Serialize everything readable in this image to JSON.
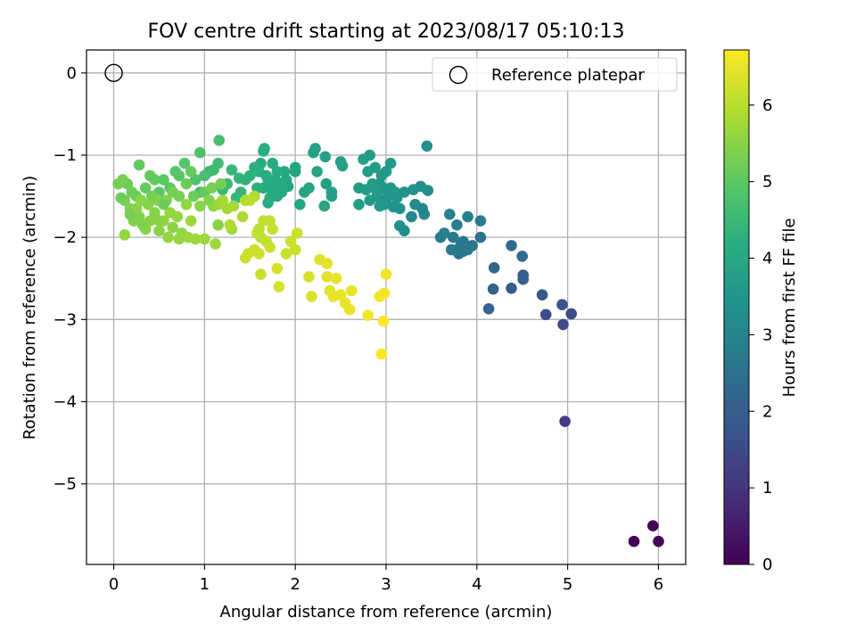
{
  "chart_data": {
    "type": "scatter",
    "title": "FOV centre drift starting at 2023/08/17 05:10:13",
    "xlabel": "Angular distance from reference (arcmin)",
    "ylabel": "Rotation from reference (arcmin)",
    "xlim": [
      -0.3,
      6.3
    ],
    "ylim": [
      -5.98,
      0.28
    ],
    "xticks": [
      "0",
      "1",
      "2",
      "3",
      "4",
      "5",
      "6"
    ],
    "yticks": [
      "0",
      "−1",
      "−2",
      "−3",
      "−4",
      "−5"
    ],
    "grid": true,
    "legend": {
      "position": "top-right",
      "label": "Reference platepar"
    },
    "reference_point": {
      "x": 0,
      "y": 0
    },
    "colorbar": {
      "label": "Hours from first FF file",
      "range": [
        0,
        6.72
      ],
      "ticks": [
        "0",
        "1",
        "2",
        "3",
        "4",
        "5",
        "6"
      ],
      "colormap": "viridis"
    },
    "points": [
      [
        5.73,
        -5.7,
        0.0
      ],
      [
        5.94,
        -5.51,
        0.05
      ],
      [
        6.0,
        -5.7,
        0.1
      ],
      [
        4.97,
        -4.24,
        1.2
      ],
      [
        4.95,
        -3.06,
        1.5
      ],
      [
        5.04,
        -2.93,
        1.55
      ],
      [
        4.76,
        -2.94,
        1.6
      ],
      [
        4.94,
        -2.82,
        1.7
      ],
      [
        4.72,
        -2.7,
        1.8
      ],
      [
        4.38,
        -2.62,
        2.0
      ],
      [
        4.51,
        -2.46,
        2.0
      ],
      [
        4.51,
        -2.51,
        2.05
      ],
      [
        4.18,
        -2.63,
        2.1
      ],
      [
        4.19,
        -2.37,
        2.2
      ],
      [
        4.13,
        -2.87,
        2.15
      ],
      [
        4.38,
        -2.1,
        2.3
      ],
      [
        4.5,
        -2.23,
        2.3
      ],
      [
        4.04,
        -2.0,
        2.5
      ],
      [
        3.95,
        -2.1,
        2.6
      ],
      [
        3.8,
        -2.2,
        2.6
      ],
      [
        3.85,
        -2.05,
        2.6
      ],
      [
        3.72,
        -2.15,
        2.7
      ],
      [
        3.6,
        -2.0,
        2.8
      ],
      [
        3.7,
        -1.72,
        2.9
      ],
      [
        3.9,
        -1.75,
        2.9
      ],
      [
        4.04,
        -1.8,
        2.8
      ],
      [
        3.64,
        -1.95,
        2.9
      ],
      [
        3.82,
        -2.1,
        2.6
      ],
      [
        3.74,
        -2.0,
        2.75
      ],
      [
        3.78,
        -1.85,
        2.85
      ],
      [
        3.9,
        -2.15,
        2.7
      ],
      [
        3.85,
        -2.17,
        2.65
      ],
      [
        3.4,
        -1.65,
        3.1
      ],
      [
        3.42,
        -1.72,
        3.1
      ],
      [
        3.28,
        -1.75,
        3.1
      ],
      [
        3.32,
        -1.6,
        3.2
      ],
      [
        3.46,
        -1.43,
        3.2
      ],
      [
        3.45,
        -0.89,
        3.3
      ],
      [
        3.38,
        -1.38,
        3.3
      ],
      [
        3.2,
        -1.92,
        3.3
      ],
      [
        3.15,
        -1.86,
        3.3
      ],
      [
        3.3,
        -1.42,
        3.4
      ],
      [
        3.0,
        -1.55,
        3.5
      ],
      [
        3.05,
        -1.4,
        3.5
      ],
      [
        2.9,
        -1.5,
        3.6
      ],
      [
        2.95,
        -1.25,
        3.6
      ],
      [
        3.05,
        -1.1,
        3.6
      ],
      [
        2.8,
        -1.2,
        3.7
      ],
      [
        2.82,
        -1.0,
        3.7
      ],
      [
        2.85,
        -1.35,
        3.7
      ],
      [
        3.15,
        -1.65,
        3.4
      ],
      [
        3.1,
        -1.45,
        3.5
      ],
      [
        2.98,
        -1.6,
        3.55
      ],
      [
        2.9,
        -1.45,
        3.6
      ],
      [
        3.02,
        -1.5,
        3.5
      ],
      [
        3.08,
        -1.63,
        3.45
      ],
      [
        2.93,
        -1.62,
        3.6
      ],
      [
        3.0,
        -1.2,
        3.6
      ],
      [
        2.88,
        -1.15,
        3.65
      ],
      [
        2.78,
        -1.42,
        3.7
      ],
      [
        2.7,
        -1.6,
        3.7
      ],
      [
        2.75,
        -1.05,
        3.75
      ],
      [
        2.93,
        -1.35,
        3.6
      ],
      [
        3.12,
        -1.52,
        3.5
      ],
      [
        3.2,
        -1.45,
        3.4
      ],
      [
        2.97,
        -1.4,
        3.55
      ],
      [
        2.88,
        -1.4,
        3.65
      ],
      [
        2.82,
        -1.55,
        3.6
      ],
      [
        2.7,
        -1.4,
        3.7
      ],
      [
        2.52,
        -1.13,
        3.8
      ],
      [
        2.5,
        -1.08,
        3.8
      ],
      [
        2.33,
        -1.02,
        3.8
      ],
      [
        2.2,
        -0.97,
        3.8
      ],
      [
        2.22,
        -0.92,
        3.8
      ],
      [
        2.4,
        -1.45,
        3.8
      ],
      [
        2.4,
        -1.5,
        3.8
      ],
      [
        2.34,
        -1.35,
        3.8
      ],
      [
        2.32,
        -1.62,
        3.9
      ],
      [
        2.24,
        -1.2,
        3.9
      ],
      [
        2.15,
        -1.4,
        3.9
      ],
      [
        2.1,
        -1.45,
        3.9
      ],
      [
        2.05,
        -1.6,
        4.0
      ],
      [
        2.0,
        -1.2,
        3.9
      ],
      [
        2.0,
        -1.15,
        4.0
      ],
      [
        1.9,
        -1.3,
        4.0
      ],
      [
        1.8,
        -1.5,
        4.0
      ],
      [
        1.78,
        -1.45,
        4.0
      ],
      [
        1.7,
        -1.3,
        4.1
      ],
      [
        1.65,
        -1.4,
        4.1
      ],
      [
        1.62,
        -1.1,
        4.1
      ],
      [
        1.65,
        -0.95,
        4.2
      ],
      [
        1.66,
        -0.92,
        4.2
      ],
      [
        1.75,
        -1.35,
        4.1
      ],
      [
        1.85,
        -1.45,
        4.05
      ],
      [
        1.88,
        -1.2,
        4.0
      ],
      [
        1.92,
        -1.38,
        4.0
      ],
      [
        1.8,
        -1.2,
        4.1
      ],
      [
        1.72,
        -1.52,
        4.1
      ],
      [
        1.82,
        -1.35,
        4.1
      ],
      [
        1.55,
        -1.15,
        4.3
      ],
      [
        1.5,
        -1.25,
        4.3
      ],
      [
        1.45,
        -1.3,
        4.3
      ],
      [
        1.58,
        -1.4,
        4.25
      ],
      [
        1.6,
        -1.2,
        4.25
      ],
      [
        1.68,
        -1.25,
        4.15
      ],
      [
        1.75,
        -1.1,
        4.1
      ],
      [
        1.78,
        -1.3,
        4.05
      ],
      [
        1.86,
        -1.38,
        4.05
      ],
      [
        1.72,
        -1.4,
        4.1
      ],
      [
        1.7,
        -1.58,
        4.15
      ],
      [
        1.4,
        -1.45,
        4.4
      ],
      [
        1.38,
        -1.28,
        4.4
      ],
      [
        1.35,
        -1.52,
        4.4
      ],
      [
        1.3,
        -1.18,
        4.5
      ],
      [
        1.25,
        -1.35,
        4.5
      ],
      [
        1.2,
        -1.42,
        4.5
      ],
      [
        1.15,
        -1.1,
        4.6
      ],
      [
        1.1,
        -1.18,
        4.6
      ],
      [
        1.05,
        -1.2,
        4.6
      ],
      [
        1.0,
        -1.25,
        4.7
      ],
      [
        0.95,
        -1.45,
        4.7
      ],
      [
        0.9,
        -1.3,
        4.8
      ],
      [
        1.16,
        -0.82,
        4.7
      ],
      [
        0.95,
        -0.97,
        4.8
      ],
      [
        0.78,
        -1.1,
        4.9
      ],
      [
        0.72,
        -1.25,
        4.9
      ],
      [
        0.68,
        -1.2,
        4.9
      ],
      [
        0.62,
        -1.4,
        5.0
      ],
      [
        0.55,
        -1.3,
        5.0
      ],
      [
        0.5,
        -1.45,
        5.0
      ],
      [
        0.45,
        -1.3,
        5.1
      ],
      [
        0.4,
        -1.25,
        5.1
      ],
      [
        0.35,
        -1.4,
        5.1
      ],
      [
        0.28,
        -1.12,
        5.1
      ],
      [
        0.25,
        -1.5,
        5.2
      ],
      [
        0.2,
        -1.45,
        5.2
      ],
      [
        0.15,
        -1.35,
        5.2
      ],
      [
        0.1,
        -1.3,
        5.3
      ],
      [
        0.05,
        -1.35,
        5.3
      ],
      [
        0.12,
        -1.55,
        5.3
      ],
      [
        0.18,
        -1.65,
        5.4
      ],
      [
        0.22,
        -1.8,
        5.4
      ],
      [
        0.28,
        -1.75,
        5.4
      ],
      [
        0.35,
        -1.9,
        5.5
      ],
      [
        0.4,
        -1.8,
        5.5
      ],
      [
        0.45,
        -1.7,
        5.5
      ],
      [
        0.5,
        -1.92,
        5.5
      ],
      [
        0.55,
        -1.8,
        5.6
      ],
      [
        0.62,
        -1.7,
        5.6
      ],
      [
        0.7,
        -1.75,
        5.6
      ],
      [
        0.75,
        -1.95,
        5.6
      ],
      [
        0.8,
        -1.6,
        5.6
      ],
      [
        0.85,
        -1.8,
        5.7
      ],
      [
        0.9,
        -2.02,
        5.7
      ],
      [
        1.0,
        -2.02,
        5.7
      ],
      [
        0.12,
        -1.97,
        5.6
      ],
      [
        0.3,
        -1.55,
        5.5
      ],
      [
        0.38,
        -1.6,
        5.5
      ],
      [
        0.48,
        -1.55,
        5.4
      ],
      [
        0.58,
        -1.55,
        5.4
      ],
      [
        0.65,
        -1.45,
        5.3
      ],
      [
        0.72,
        -1.5,
        5.3
      ],
      [
        0.8,
        -1.35,
        5.2
      ],
      [
        0.85,
        -1.2,
        5.1
      ],
      [
        1.0,
        -1.45,
        5.1
      ],
      [
        1.05,
        -1.55,
        5.4
      ],
      [
        1.1,
        -1.62,
        5.5
      ],
      [
        1.15,
        -1.6,
        5.7
      ],
      [
        1.2,
        -1.55,
        5.8
      ],
      [
        1.25,
        -1.65,
        5.8
      ],
      [
        1.3,
        -1.9,
        5.8
      ],
      [
        1.32,
        -1.62,
        5.8
      ],
      [
        1.42,
        -1.75,
        5.9
      ],
      [
        1.45,
        -1.55,
        5.9
      ],
      [
        1.55,
        -1.5,
        5.9
      ],
      [
        1.5,
        -1.55,
        6.0
      ],
      [
        1.6,
        -1.9,
        6.0
      ],
      [
        1.62,
        -2.0,
        6.0
      ],
      [
        1.58,
        -1.95,
        6.1
      ],
      [
        1.65,
        -1.8,
        6.1
      ],
      [
        1.68,
        -2.05,
        6.1
      ],
      [
        1.72,
        -1.8,
        6.1
      ],
      [
        1.75,
        -1.9,
        6.1
      ],
      [
        1.72,
        -2.12,
        6.2
      ],
      [
        1.6,
        -2.2,
        6.2
      ],
      [
        1.55,
        -2.15,
        6.2
      ],
      [
        1.45,
        -2.25,
        6.2
      ],
      [
        1.48,
        -2.2,
        6.2
      ],
      [
        1.62,
        -2.45,
        6.2
      ],
      [
        1.8,
        -2.38,
        6.3
      ],
      [
        1.82,
        -2.6,
        6.3
      ],
      [
        1.95,
        -2.05,
        6.2
      ],
      [
        2.0,
        -2.15,
        6.2
      ],
      [
        2.02,
        -1.95,
        6.2
      ],
      [
        1.9,
        -2.2,
        6.2
      ],
      [
        1.15,
        -1.85,
        5.5
      ],
      [
        1.12,
        -2.08,
        5.7
      ],
      [
        1.28,
        -1.85,
        5.9
      ],
      [
        0.82,
        -2.0,
        5.7
      ],
      [
        0.72,
        -2.02,
        5.6
      ],
      [
        0.6,
        -2.0,
        5.6
      ],
      [
        0.5,
        -1.8,
        5.5
      ],
      [
        0.25,
        -1.65,
        5.5
      ],
      [
        0.18,
        -1.72,
        5.3
      ],
      [
        0.08,
        -1.52,
        5.2
      ],
      [
        0.32,
        -1.85,
        5.4
      ],
      [
        0.42,
        -1.5,
        5.3
      ],
      [
        0.65,
        -1.88,
        5.5
      ],
      [
        0.95,
        -1.62,
        5.5
      ],
      [
        1.08,
        -1.4,
        5.3
      ],
      [
        1.18,
        -1.35,
        5.3
      ],
      [
        0.88,
        -1.5,
        5.2
      ],
      [
        0.55,
        -1.6,
        5.2
      ],
      [
        2.15,
        -2.48,
        6.3
      ],
      [
        2.18,
        -2.72,
        6.3
      ],
      [
        2.27,
        -2.27,
        6.4
      ],
      [
        2.35,
        -2.32,
        6.4
      ],
      [
        2.35,
        -2.48,
        6.4
      ],
      [
        2.38,
        -2.65,
        6.4
      ],
      [
        2.45,
        -2.5,
        6.5
      ],
      [
        2.42,
        -2.72,
        6.5
      ],
      [
        2.5,
        -2.7,
        6.5
      ],
      [
        2.55,
        -2.8,
        6.5
      ],
      [
        2.6,
        -2.88,
        6.5
      ],
      [
        2.62,
        -2.65,
        6.5
      ],
      [
        2.8,
        -2.95,
        6.6
      ],
      [
        2.93,
        -2.72,
        6.6
      ],
      [
        2.98,
        -2.68,
        6.6
      ],
      [
        3.0,
        -2.45,
        6.6
      ],
      [
        2.97,
        -3.02,
        6.7
      ],
      [
        2.95,
        -3.42,
        6.7
      ]
    ]
  }
}
